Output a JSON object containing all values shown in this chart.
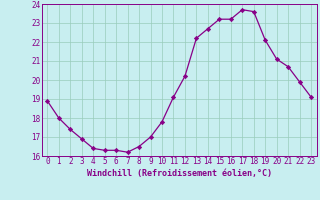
{
  "x": [
    0,
    1,
    2,
    3,
    4,
    5,
    6,
    7,
    8,
    9,
    10,
    11,
    12,
    13,
    14,
    15,
    16,
    17,
    18,
    19,
    20,
    21,
    22,
    23
  ],
  "y": [
    18.9,
    18.0,
    17.4,
    16.9,
    16.4,
    16.3,
    16.3,
    16.2,
    16.5,
    17.0,
    17.8,
    19.1,
    20.2,
    22.2,
    22.7,
    23.2,
    23.2,
    23.7,
    23.6,
    22.1,
    21.1,
    20.7,
    19.9,
    19.1
  ],
  "line_color": "#880088",
  "marker": "D",
  "marker_size": 2.2,
  "bg_color": "#c8eef0",
  "grid_color": "#99ccbb",
  "xlabel": "Windchill (Refroidissement éolien,°C)",
  "ylim": [
    16,
    24
  ],
  "yticks": [
    16,
    17,
    18,
    19,
    20,
    21,
    22,
    23,
    24
  ],
  "xticks": [
    0,
    1,
    2,
    3,
    4,
    5,
    6,
    7,
    8,
    9,
    10,
    11,
    12,
    13,
    14,
    15,
    16,
    17,
    18,
    19,
    20,
    21,
    22,
    23
  ],
  "axis_fontsize": 6.0,
  "tick_fontsize": 5.5
}
